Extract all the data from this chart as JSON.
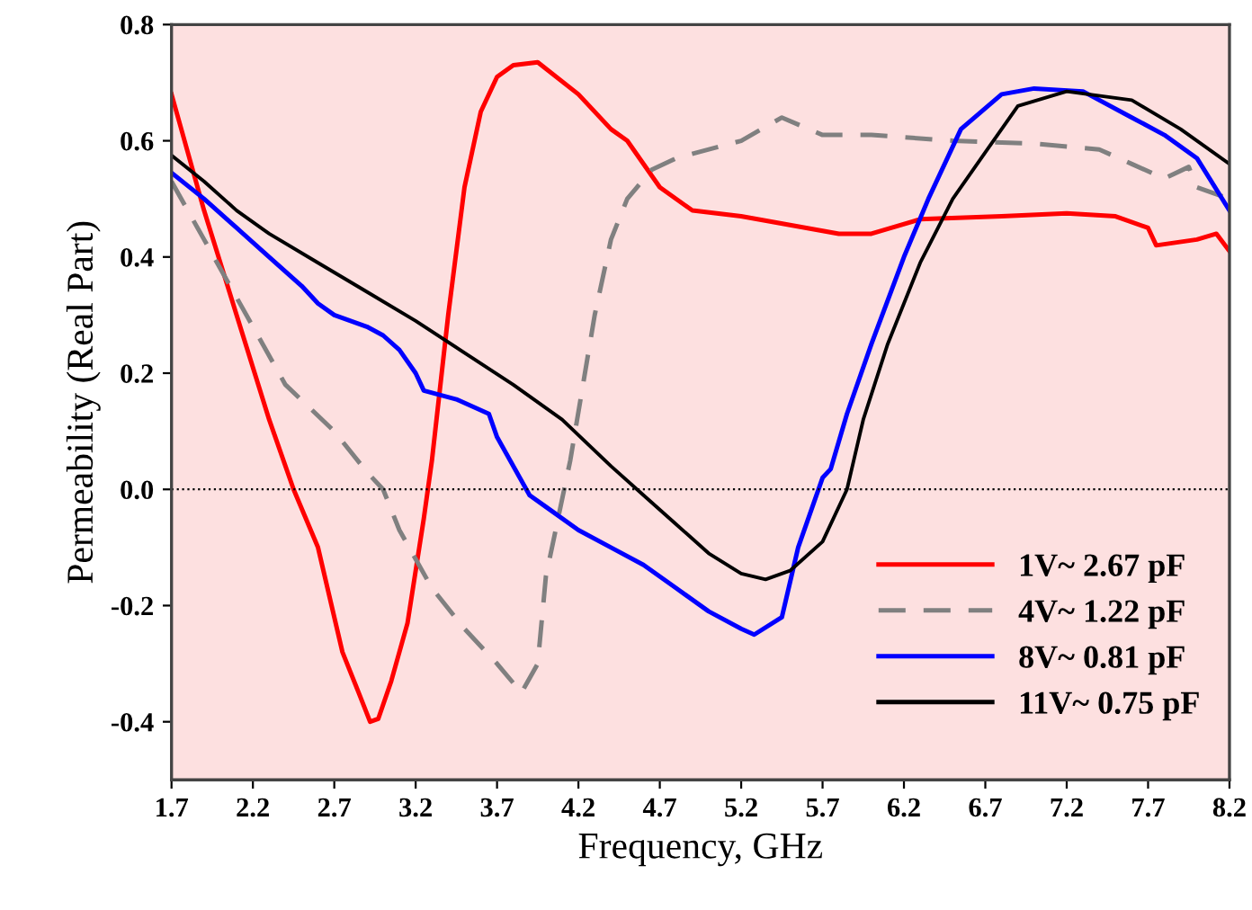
{
  "chart_data": {
    "type": "line",
    "xlabel": "Frequency, GHz",
    "ylabel": "Permeability (Real Part)",
    "xlim": [
      1.7,
      8.2
    ],
    "xticks": [
      1.7,
      2.2,
      2.7,
      3.2,
      3.7,
      4.2,
      4.7,
      5.2,
      5.7,
      6.2,
      6.7,
      7.2,
      7.7,
      8.2
    ],
    "ylim": [
      -0.5,
      0.8
    ],
    "yticks": [
      -0.4,
      -0.2,
      {
        "value": 0,
        "label": "0.0"
      },
      0.2,
      0.4,
      0.6,
      0.8
    ],
    "grid": false,
    "legend": "bottom right",
    "ref_lines": [
      {
        "axis": "y",
        "value": 0,
        "color": "#000000",
        "line_style": "dotted"
      }
    ],
    "series": [
      {
        "name": "1V~ 2.67 pF",
        "color": "#ff0000",
        "line_style": "solid",
        "x": [
          1.7,
          1.9,
          2.1,
          2.3,
          2.45,
          2.6,
          2.75,
          2.85,
          2.92,
          2.97,
          3.05,
          3.15,
          3.25,
          3.3,
          3.4,
          3.5,
          3.6,
          3.7,
          3.8,
          3.95,
          4.2,
          4.4,
          4.5,
          4.7,
          4.9,
          5.2,
          5.6,
          5.8,
          6.0,
          6.3,
          6.8,
          7.2,
          7.5,
          7.7,
          7.75,
          8.0,
          8.12,
          8.2
        ],
        "values": [
          0.68,
          0.48,
          0.3,
          0.12,
          0.0,
          -0.1,
          -0.28,
          -0.35,
          -0.4,
          -0.395,
          -0.33,
          -0.23,
          -0.05,
          0.05,
          0.3,
          0.52,
          0.65,
          0.71,
          0.73,
          0.735,
          0.68,
          0.62,
          0.6,
          0.52,
          0.48,
          0.47,
          0.45,
          0.44,
          0.44,
          0.465,
          0.47,
          0.475,
          0.47,
          0.45,
          0.42,
          0.43,
          0.44,
          0.41
        ]
      },
      {
        "name": "4V~ 1.22 pF",
        "color": "#808080",
        "line_style": "dashed",
        "x": [
          1.7,
          1.9,
          2.1,
          2.4,
          2.7,
          2.9,
          3.0,
          3.1,
          3.3,
          3.5,
          3.7,
          3.85,
          3.95,
          4.0,
          4.15,
          4.3,
          4.4,
          4.5,
          4.65,
          4.8,
          5.2,
          5.45,
          5.7,
          6.0,
          6.5,
          7.0,
          7.4,
          7.6,
          7.8,
          7.95,
          8.0,
          8.2
        ],
        "values": [
          0.53,
          0.43,
          0.33,
          0.18,
          0.1,
          0.03,
          0.0,
          -0.07,
          -0.17,
          -0.24,
          -0.3,
          -0.35,
          -0.3,
          -0.15,
          0.05,
          0.3,
          0.43,
          0.5,
          0.55,
          0.57,
          0.6,
          0.64,
          0.61,
          0.61,
          0.6,
          0.595,
          0.585,
          0.56,
          0.535,
          0.555,
          0.52,
          0.5
        ]
      },
      {
        "name": "8V~ 0.81 pF",
        "color": "#0000ff",
        "line_style": "solid",
        "x": [
          1.7,
          1.9,
          2.1,
          2.3,
          2.5,
          2.6,
          2.7,
          2.9,
          3.0,
          3.1,
          3.2,
          3.25,
          3.45,
          3.65,
          3.7,
          3.9,
          4.0,
          4.2,
          4.4,
          4.6,
          4.8,
          5.0,
          5.2,
          5.28,
          5.45,
          5.55,
          5.7,
          5.75,
          5.85,
          6.0,
          6.2,
          6.35,
          6.55,
          6.8,
          7.0,
          7.3,
          7.6,
          7.8,
          8.0,
          8.2
        ],
        "values": [
          0.545,
          0.5,
          0.45,
          0.4,
          0.35,
          0.32,
          0.3,
          0.28,
          0.265,
          0.24,
          0.2,
          0.17,
          0.155,
          0.13,
          0.09,
          -0.01,
          -0.03,
          -0.07,
          -0.1,
          -0.13,
          -0.17,
          -0.21,
          -0.24,
          -0.25,
          -0.22,
          -0.1,
          0.02,
          0.035,
          0.13,
          0.25,
          0.4,
          0.5,
          0.62,
          0.68,
          0.69,
          0.685,
          0.64,
          0.61,
          0.57,
          0.48
        ]
      },
      {
        "name": "11V~ 0.75 pF",
        "color": "#000000",
        "line_style": "solid",
        "x": [
          1.7,
          1.9,
          2.1,
          2.3,
          2.6,
          2.9,
          3.2,
          3.5,
          3.8,
          4.1,
          4.4,
          4.6,
          4.8,
          5.0,
          5.2,
          5.35,
          5.5,
          5.7,
          5.85,
          5.95,
          6.1,
          6.3,
          6.5,
          6.7,
          6.9,
          7.2,
          7.6,
          7.9,
          8.2
        ],
        "values": [
          0.575,
          0.53,
          0.48,
          0.44,
          0.39,
          0.34,
          0.29,
          0.235,
          0.18,
          0.12,
          0.04,
          -0.01,
          -0.06,
          -0.11,
          -0.145,
          -0.155,
          -0.14,
          -0.09,
          0.0,
          0.12,
          0.25,
          0.39,
          0.5,
          0.58,
          0.66,
          0.685,
          0.67,
          0.62,
          0.56
        ]
      }
    ]
  }
}
